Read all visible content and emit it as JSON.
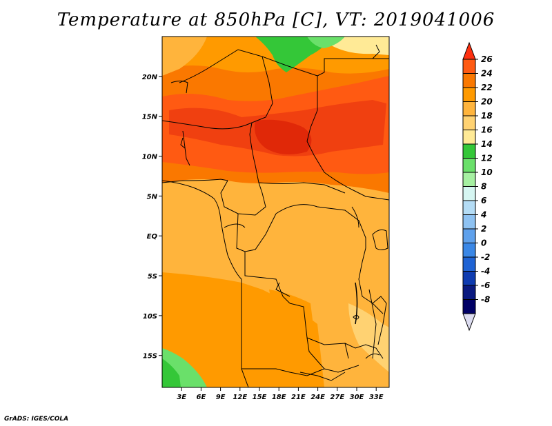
{
  "title": "Temperature at 850hPa [C], VT: 2019041006",
  "credit": "GrADS: IGES/COLA",
  "map": {
    "lon_range": [
      0,
      35
    ],
    "lat_range": [
      -19,
      25
    ],
    "lon_ticks": [
      "3E",
      "6E",
      "9E",
      "12E",
      "15E",
      "18E",
      "21E",
      "24E",
      "27E",
      "30E",
      "33E"
    ],
    "lat_ticks": [
      "20N",
      "15N",
      "10N",
      "5N",
      "EQ",
      "5S",
      "10S",
      "15S"
    ]
  },
  "legend": {
    "labels": [
      "26",
      "24",
      "22",
      "20",
      "18",
      "16",
      "14",
      "12",
      "10",
      "8",
      "6",
      "4",
      "2",
      "0",
      "-2",
      "-4",
      "-6",
      "-8"
    ],
    "colors": [
      "#ff3010",
      "#ff5a12",
      "#fa7800",
      "#ff9a00",
      "#ffb43c",
      "#ffd272",
      "#ffea96",
      "#34c738",
      "#6ae06a",
      "#a6f0a2",
      "#d6f6f2",
      "#b4dcf5",
      "#8ec2f2",
      "#5fa1ec",
      "#3a87e6",
      "#1f63d4",
      "#0e3bb0",
      "#0a1a80",
      "#000065",
      "#dcdcf0"
    ]
  },
  "colors": {
    "orange_light": "#ffb43c",
    "orange_mid": "#ff9a00",
    "orange_dark": "#fa7800",
    "red_orange": "#ff5a12",
    "red": "#e02808",
    "green": "#34c738",
    "light_green": "#6ae06a"
  }
}
